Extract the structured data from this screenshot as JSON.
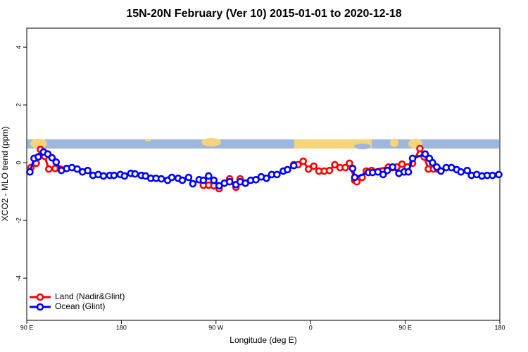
{
  "chart_data": {
    "type": "line",
    "title": "15N-20N February (Ver 10)   2015-01-01 to 2020-12-18",
    "x_label": "Longitude (deg E)",
    "y_label": "XCO2 - MLO trend (ppm)",
    "xlim": [
      90,
      540
    ],
    "ylim": [
      -5.46,
      4.66
    ],
    "xticks": [
      {
        "value": 90,
        "label": "90 E"
      },
      180,
      {
        "value": 270,
        "label": "90 W"
      },
      {
        "value": 360,
        "label": "0"
      },
      {
        "value": 450,
        "label": "90 E"
      },
      {
        "value": 540,
        "label": "180"
      }
    ],
    "yticks": [
      -4,
      -2,
      0,
      2,
      4
    ],
    "legend": "bottom-left",
    "series": [
      {
        "name": "Land (Nadir&Glint)",
        "color": "#ff0000",
        "x": [
          94,
          99,
          103,
          107,
          111,
          117,
          122,
          190,
          258,
          263,
          268,
          273,
          283,
          289,
          293,
          320,
          344,
          348,
          353,
          358,
          363,
          368,
          373,
          378,
          383,
          388,
          393,
          397,
          402,
          404,
          409,
          413,
          418,
          434,
          438,
          442,
          447,
          452,
          457,
          464,
          468,
          472,
          477,
          481
        ],
        "values": [
          -0.17,
          -0.02,
          0.46,
          0.22,
          -0.22,
          -0.2,
          -0.22,
          null,
          -0.78,
          -0.78,
          -0.8,
          -0.9,
          -0.56,
          -0.85,
          -0.56,
          null,
          -0.07,
          -0.07,
          0.05,
          -0.22,
          -0.12,
          -0.29,
          -0.29,
          -0.27,
          -0.07,
          -0.17,
          -0.17,
          -0.02,
          -0.61,
          -0.66,
          -0.51,
          -0.29,
          -0.27,
          -0.15,
          -0.17,
          -0.15,
          -0.05,
          -0.15,
          -0.02,
          0.49,
          0.2,
          -0.22,
          -0.22,
          -0.22
        ]
      },
      {
        "name": "Ocean (Glint)",
        "color": "#0000ff",
        "x": [
          93,
          97,
          101,
          106,
          110,
          114,
          118,
          123,
          128,
          133,
          138,
          143,
          148,
          153,
          158,
          163,
          169,
          173,
          179,
          183,
          189,
          193,
          199,
          203,
          208,
          213,
          218,
          224,
          228,
          234,
          238,
          244,
          248,
          254,
          258,
          263,
          268,
          273,
          278,
          283,
          289,
          293,
          298,
          303,
          308,
          313,
          318,
          323,
          328,
          334,
          338,
          344,
          370,
          400,
          402,
          415,
          419,
          424,
          429,
          433,
          438,
          444,
          449,
          453,
          457,
          469,
          473,
          476,
          480,
          484,
          489,
          494,
          499,
          503,
          509,
          513,
          518,
          523,
          528,
          533,
          539
        ],
        "values": [
          -0.32,
          0.15,
          0.2,
          0.37,
          0.3,
          0.17,
          0.02,
          -0.27,
          -0.2,
          -0.17,
          -0.22,
          -0.32,
          -0.27,
          -0.44,
          -0.41,
          -0.46,
          -0.44,
          -0.44,
          -0.41,
          -0.46,
          -0.37,
          -0.39,
          -0.44,
          -0.46,
          -0.54,
          -0.54,
          -0.56,
          -0.61,
          -0.51,
          -0.54,
          -0.61,
          -0.51,
          -0.73,
          -0.59,
          -0.61,
          -0.46,
          -0.61,
          -0.8,
          -0.71,
          -0.66,
          -0.76,
          -0.66,
          -0.71,
          -0.61,
          -0.59,
          -0.49,
          -0.54,
          -0.41,
          -0.41,
          -0.29,
          -0.24,
          -0.1,
          null,
          -0.2,
          -0.51,
          -0.34,
          -0.34,
          -0.32,
          -0.41,
          -0.27,
          -0.15,
          -0.37,
          -0.32,
          -0.32,
          0.15,
          0.3,
          0.15,
          0,
          -0.15,
          -0.29,
          -0.17,
          -0.17,
          -0.24,
          -0.32,
          -0.27,
          -0.44,
          -0.41,
          -0.46,
          -0.44,
          -0.44,
          -0.41
        ]
      }
    ]
  }
}
